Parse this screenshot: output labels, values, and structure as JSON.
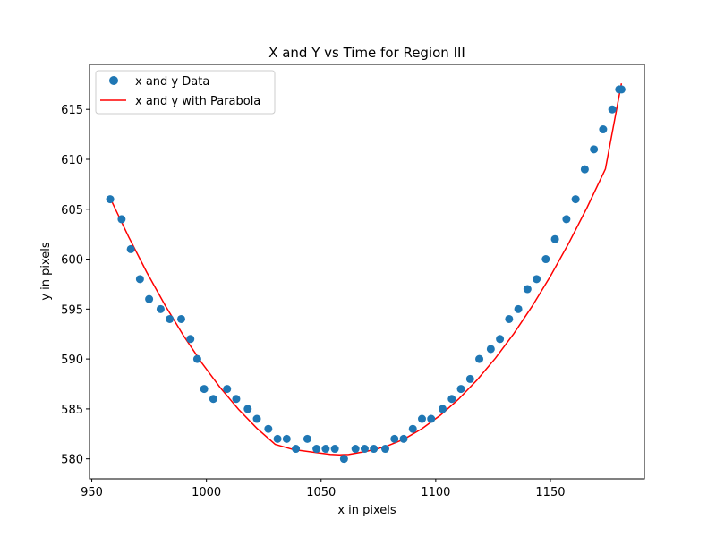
{
  "chart_data": {
    "type": "scatter",
    "title": "X and Y vs Time for Region III",
    "xlabel": "x in pixels",
    "ylabel": "y in pixels",
    "xlim": [
      949,
      1191
    ],
    "ylim": [
      578,
      619.5
    ],
    "xticks": [
      950,
      1000,
      1050,
      1100,
      1150
    ],
    "yticks": [
      580,
      585,
      590,
      595,
      600,
      605,
      610,
      615
    ],
    "grid": false,
    "legend_position": "upper-left",
    "series": [
      {
        "name": "x and y Data",
        "kind": "scatter",
        "color": "#1f77b4",
        "x": [
          958,
          963,
          967,
          971,
          975,
          980,
          984,
          989,
          993,
          996,
          999,
          1003,
          1009,
          1013,
          1018,
          1022,
          1027,
          1031,
          1035,
          1039,
          1044,
          1048,
          1052,
          1056,
          1060,
          1065,
          1069,
          1073,
          1078,
          1082,
          1086,
          1090,
          1094,
          1098,
          1103,
          1107,
          1111,
          1115,
          1119,
          1124,
          1128,
          1132,
          1136,
          1140,
          1144,
          1148,
          1152,
          1157,
          1161,
          1165,
          1169,
          1173,
          1177,
          1180,
          1181
        ],
        "y": [
          606,
          604,
          601,
          598,
          596,
          595,
          594,
          594,
          592,
          590,
          587,
          586,
          587,
          586,
          585,
          584,
          583,
          582,
          582,
          581,
          582,
          581,
          581,
          581,
          580,
          581,
          581,
          581,
          581,
          582,
          582,
          583,
          584,
          584,
          585,
          586,
          587,
          588,
          590,
          591,
          592,
          594,
          595,
          597,
          598,
          600,
          602,
          604,
          606,
          609,
          611,
          613,
          615,
          617,
          617
        ]
      },
      {
        "name": "x and y with Parabola",
        "kind": "line",
        "color": "#ff0000",
        "x": [
          958,
          966,
          974,
          982,
          990,
          998,
          1006,
          1014,
          1022,
          1030,
          1038,
          1046,
          1054,
          1058,
          1062,
          1070,
          1078,
          1086,
          1094,
          1102,
          1110,
          1118,
          1126,
          1134,
          1142,
          1150,
          1158,
          1166,
          1174,
          1181
        ],
        "y": [
          606.12,
          602.26,
          598.67,
          595.37,
          592.34,
          589.6,
          587.14,
          584.96,
          583.06,
          581.44,
          580.92,
          580.68,
          580.44,
          580.4,
          580.43,
          580.76,
          581.21,
          581.95,
          583.02,
          584.36,
          585.99,
          587.89,
          590.07,
          592.53,
          595.27,
          598.29,
          601.59,
          605.17,
          609.03,
          617.6
        ]
      }
    ]
  }
}
